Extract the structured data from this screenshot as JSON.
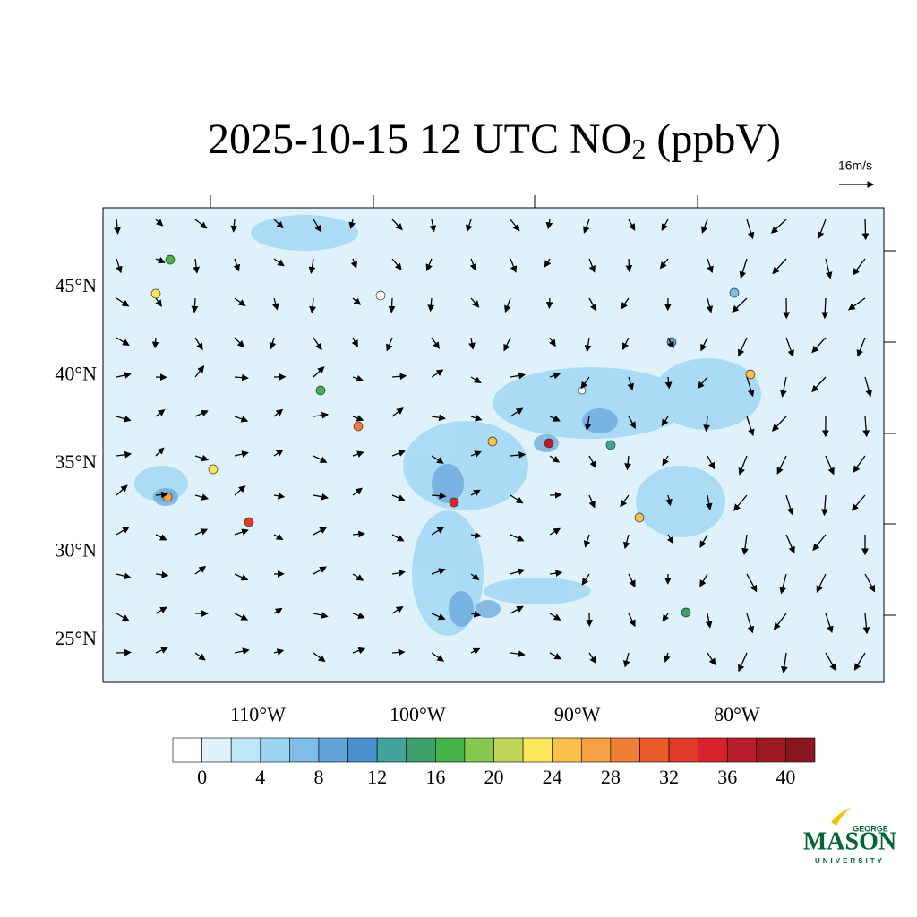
{
  "map": {
    "title": {
      "main": "2025-10-15 12 UTC NO",
      "sub": "2",
      "units": " (ppbV)"
    },
    "vector_reference": "16m/s",
    "lat_ticks": [
      {
        "value": 45,
        "label": "45°N"
      },
      {
        "value": 40,
        "label": "40°N"
      },
      {
        "value": 35,
        "label": "35°N"
      },
      {
        "value": 30,
        "label": "30°N"
      },
      {
        "value": 25,
        "label": "25°N"
      }
    ],
    "lon_ticks": [
      {
        "value": -110,
        "label": "110°W"
      },
      {
        "value": -100,
        "label": "100°W"
      },
      {
        "value": -90,
        "label": "90°W"
      },
      {
        "value": -80,
        "label": "80°W"
      }
    ],
    "colorbar": {
      "lim": [
        -2,
        42
      ],
      "ticks": [
        0,
        4,
        8,
        12,
        16,
        20,
        24,
        28,
        32,
        36,
        40
      ],
      "colors": [
        "#ffffff",
        "#dff2fb",
        "#bde6f7",
        "#9dd6f3",
        "#7fbde6",
        "#62a3d9",
        "#4a8fce",
        "#43a39b",
        "#3f9f6a",
        "#45b34a",
        "#86c651",
        "#bfd55a",
        "#fbe85a",
        "#f9c04c",
        "#f7a043",
        "#f07d34",
        "#ec5a2c",
        "#e03a2b",
        "#d8232f",
        "#b81c2c",
        "#a01a24",
        "#8a1620"
      ]
    },
    "logo": {
      "top": "GEORGE",
      "name": "MASON",
      "bottom": "UNIVERSITY"
    }
  }
}
